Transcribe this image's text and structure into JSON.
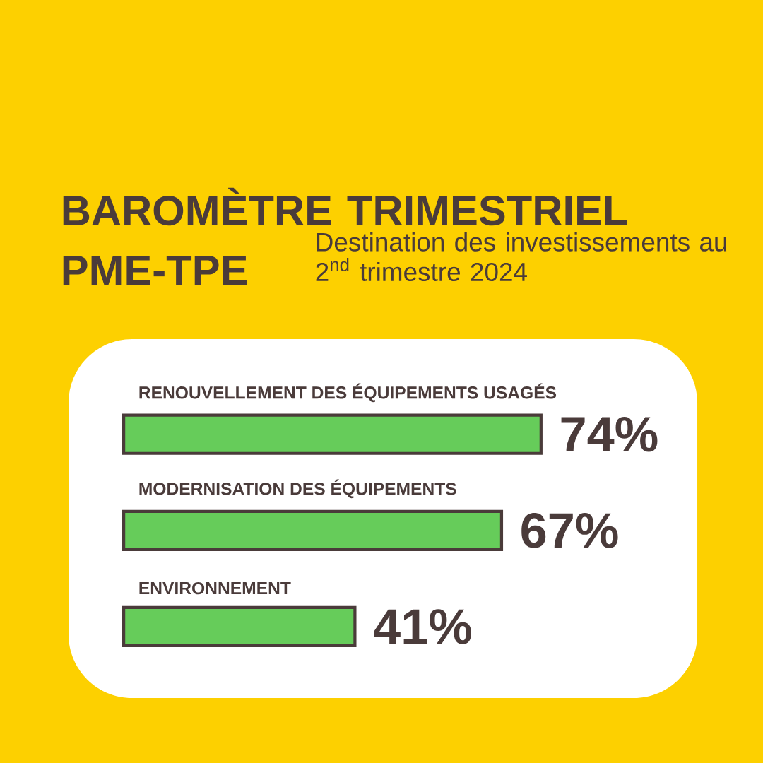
{
  "chart_data": {
    "type": "bar",
    "orientation": "horizontal",
    "title": "BAROMÈTRE TRIMESTRIEL PME-TPE",
    "subtitle": "Destination des investissements au 2$^{nd}$ trimestre 2024",
    "categories": [
      "RENOUVELLEMENT DES ÉQUIPEMENTS USAGÉS",
      "MODERNISATION DES ÉQUIPEMENTS",
      "ENVIRONNEMENT"
    ],
    "values": [
      74,
      67,
      41
    ],
    "color": "#66cc5a",
    "value_labels": [
      "74%",
      "67%",
      "41%"
    ]
  }
}
